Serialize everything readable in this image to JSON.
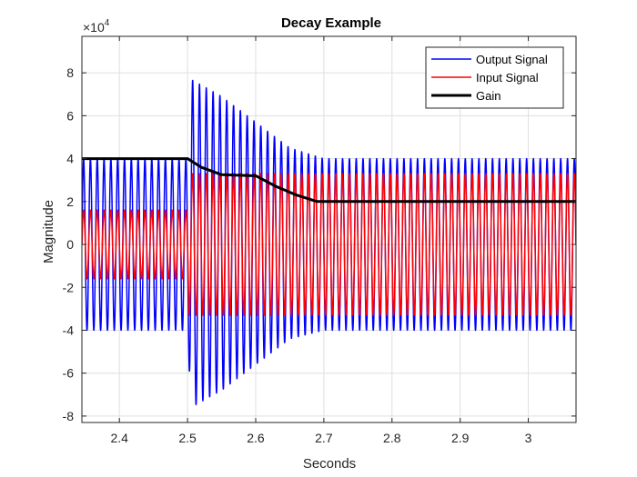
{
  "chart_data": {
    "type": "line",
    "title": "Decay Example",
    "xlabel": "Seconds",
    "ylabel": "Magnitude",
    "y_exponent_label": "×10",
    "y_exponent_power": "4",
    "xlim": [
      2.345,
      3.07
    ],
    "ylim": [
      -8.3,
      9.7
    ],
    "y_scale_factor": 10000,
    "xticks": [
      2.4,
      2.5,
      2.6,
      2.7,
      2.8,
      2.9,
      3.0
    ],
    "xtick_labels": [
      "2.4",
      "2.5",
      "2.6",
      "2.7",
      "2.8",
      "2.9",
      "3"
    ],
    "yticks": [
      -8,
      -6,
      -4,
      -2,
      0,
      2,
      4,
      6,
      8
    ],
    "ytick_labels": [
      "-8",
      "-6",
      "-4",
      "-2",
      "0",
      "2",
      "4",
      "6",
      "8"
    ],
    "grid": true,
    "legend_position": "top-right",
    "signal_frequency_hz": 100,
    "series": [
      {
        "name": "Output Signal",
        "color": "#0000ff",
        "kind": "oscillation",
        "envelope_x": [
          2.345,
          2.5,
          2.505,
          2.55,
          2.6,
          2.65,
          2.7,
          3.07
        ],
        "envelope_y": [
          4.0,
          4.0,
          7.7,
          6.9,
          5.7,
          4.5,
          4.0,
          4.0
        ],
        "lower_envelope_x": [
          2.345,
          2.5,
          2.505,
          2.55,
          2.6,
          2.65,
          2.7,
          3.07
        ],
        "lower_envelope_y": [
          4.0,
          4.0,
          7.6,
          6.8,
          5.6,
          4.4,
          4.0,
          4.0
        ]
      },
      {
        "name": "Input Signal",
        "color": "#ff0000",
        "kind": "oscillation",
        "envelope_x": [
          2.345,
          2.5,
          2.502,
          3.07
        ],
        "envelope_y": [
          1.6,
          1.6,
          3.3,
          3.3
        ]
      },
      {
        "name": "Gain",
        "color": "#000000",
        "kind": "line",
        "x": [
          2.345,
          2.5,
          2.52,
          2.55,
          2.6,
          2.63,
          2.66,
          2.69,
          3.07
        ],
        "y": [
          4.0,
          4.0,
          3.6,
          3.25,
          3.2,
          2.7,
          2.3,
          2.0,
          2.0
        ]
      }
    ]
  }
}
